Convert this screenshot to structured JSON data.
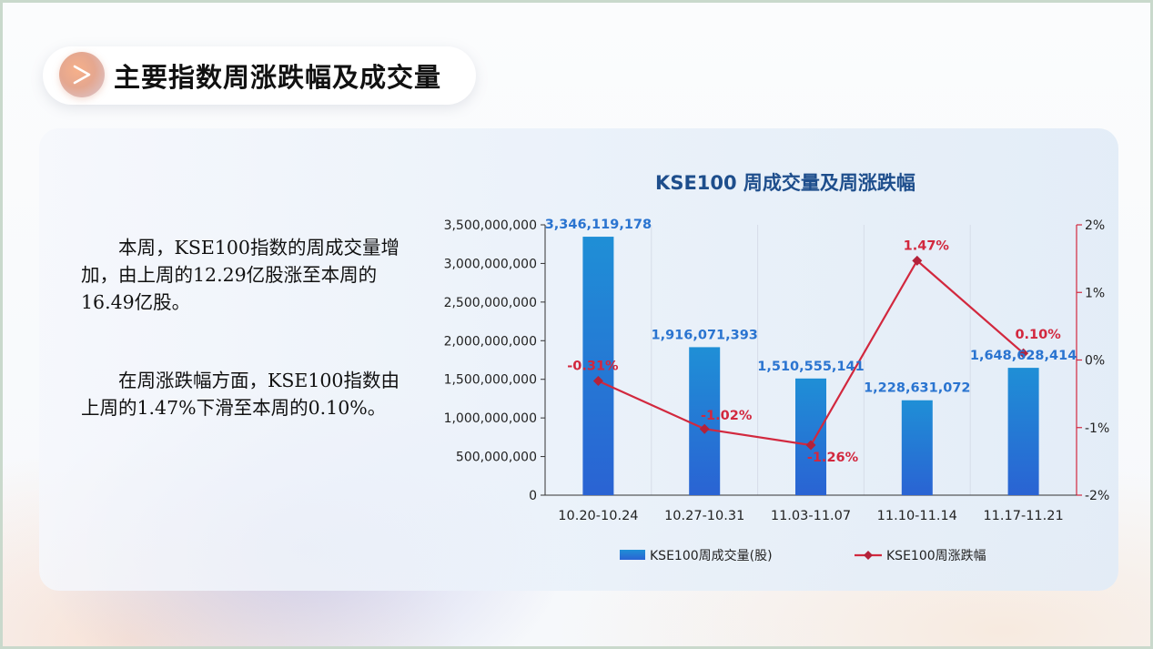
{
  "page": {
    "title": "主要指数周涨跌幅及成交量"
  },
  "text": {
    "paragraph_1": "本周，KSE100指数的周成交量增加，由上周的12.29亿股涨至本周的16.49亿股。",
    "paragraph_2": "在周涨跌幅方面，KSE100指数由上周的1.47%下滑至本周的0.10%。"
  },
  "colors": {
    "bar": "#1f8fd6",
    "bar_bottom": "#2a63d3",
    "line": "#d2283e",
    "bar_label": "#2a74d0",
    "line_label": "#d2283e",
    "title": "#1e4e8c"
  },
  "chart_data": {
    "type": "bar+line",
    "title": "KSE100 周成交量及周涨跌幅",
    "categories": [
      "10.20-10.24",
      "10.27-10.31",
      "11.03-11.07",
      "11.10-11.14",
      "11.17-11.21"
    ],
    "series": [
      {
        "name": "KSE100周成交量(股)",
        "type": "bar",
        "axis": "left",
        "values": [
          3346119178,
          1916071393,
          1510555141,
          1228631072,
          1648628414
        ],
        "labels": [
          "3,346,119,178",
          "1,916,071,393",
          "1,510,555,141",
          "1,228,631,072",
          "1,648,628,414"
        ]
      },
      {
        "name": "KSE100周涨跌幅",
        "type": "line",
        "axis": "right",
        "values": [
          -0.31,
          -1.02,
          -1.26,
          1.47,
          0.1
        ],
        "labels": [
          "-0.31%",
          "-1.02%",
          "-1.26%",
          "1.47%",
          "0.10%"
        ]
      }
    ],
    "left_axis": {
      "ylim": [
        0,
        3500000000
      ],
      "ticks": [
        "0",
        "500,000,000",
        "1,000,000,000",
        "1,500,000,000",
        "2,000,000,000",
        "2,500,000,000",
        "3,000,000,000",
        "3,500,000,000"
      ]
    },
    "right_axis": {
      "ylim": [
        -2,
        2
      ],
      "ticks": [
        "-2%",
        "-1%",
        "0%",
        "1%",
        "2%"
      ]
    },
    "grid": "vertical",
    "legend": "bottom"
  }
}
